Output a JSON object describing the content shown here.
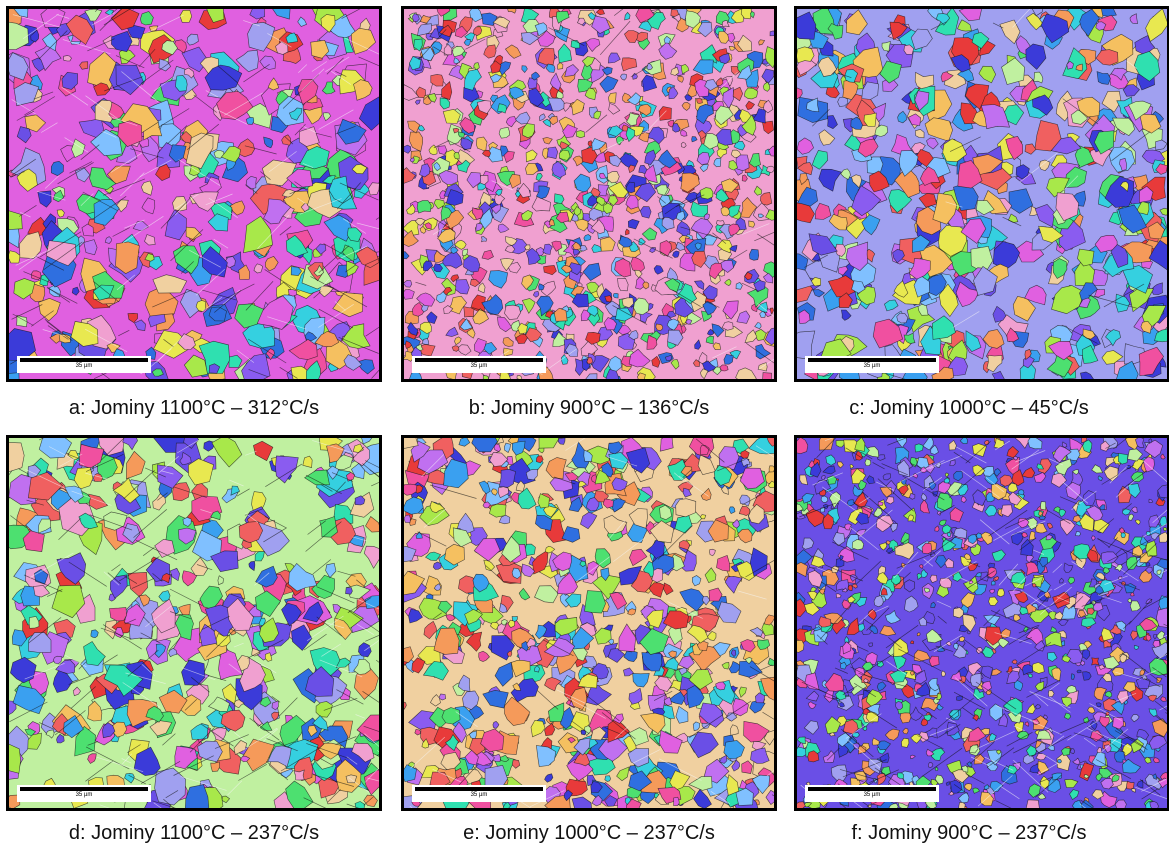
{
  "panels": [
    {
      "id": "a",
      "caption": "a: Jominy 1100°C – 312°C/s",
      "scale_label": "35 µm",
      "texture": "lath-coarse"
    },
    {
      "id": "b",
      "caption": "b: Jominy 900°C – 136°C/s",
      "scale_label": "35 µm",
      "texture": "fine"
    },
    {
      "id": "c",
      "caption": "c: Jominy 1000°C – 45°C/s",
      "scale_label": "35 µm",
      "texture": "equiaxed"
    },
    {
      "id": "d",
      "caption": "d: Jominy 1100°C – 237°C/s",
      "scale_label": "35 µm",
      "texture": "lath-coarse"
    },
    {
      "id": "e",
      "caption": "e: Jominy 1000°C – 237°C/s",
      "scale_label": "35 µm",
      "texture": "mixed"
    },
    {
      "id": "f",
      "caption": "f: Jominy 900°C – 237°C/s",
      "scale_label": "35 µm",
      "texture": "fine-lath"
    }
  ],
  "palette": [
    "#3b3bd9",
    "#6a4fe6",
    "#8a5cf0",
    "#2f6fe0",
    "#3aa0f0",
    "#35d0e0",
    "#2fe0b0",
    "#4de070",
    "#a8e84a",
    "#e8e850",
    "#f5c060",
    "#f59a5a",
    "#f06060",
    "#e83a3a",
    "#f050a0",
    "#e060e0",
    "#c070f0",
    "#f0a0d0",
    "#a0a0f0",
    "#80c0ff",
    "#c0f0a0",
    "#f0d0a0"
  ]
}
